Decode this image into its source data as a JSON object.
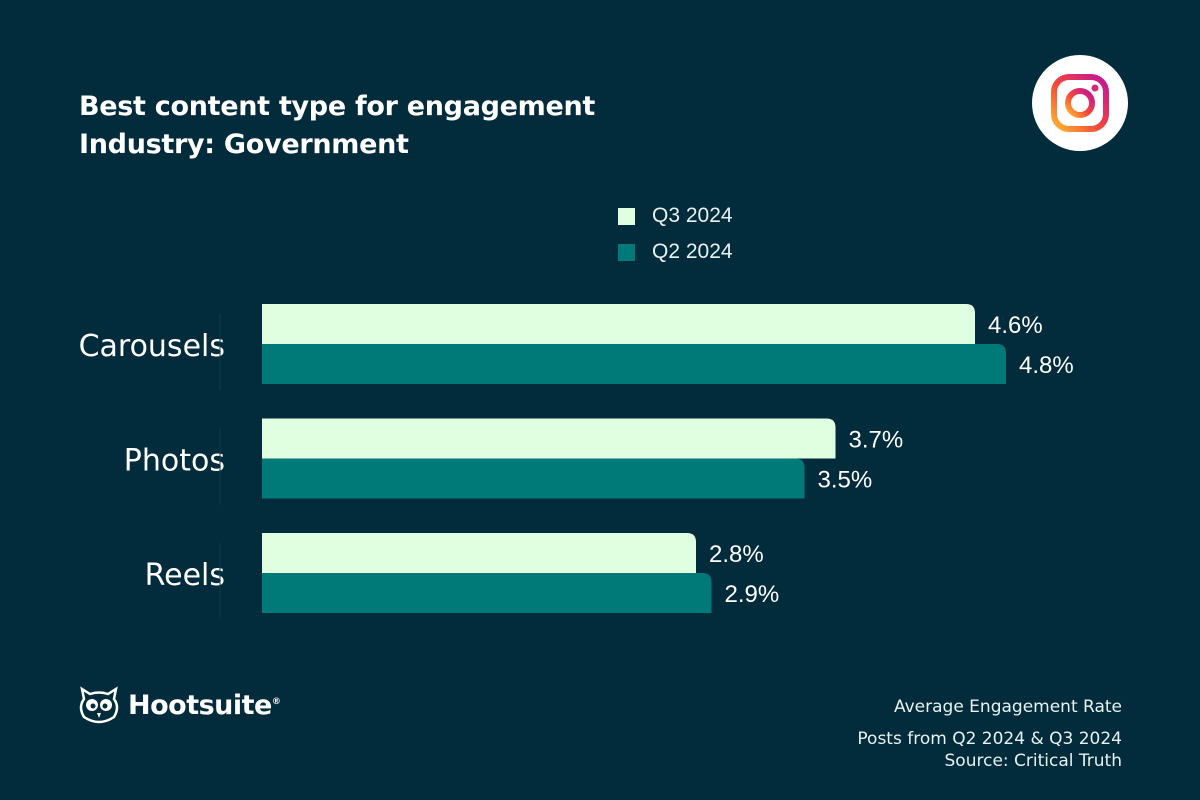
{
  "title_line1": "Best content type for engagement",
  "title_line2": "Industry: Government",
  "logo_icon": "instagram-icon",
  "brand": "Hootsuite",
  "brand_mark": "®",
  "footer": {
    "metric": "Average Engagement Rate",
    "posts": "Posts from Q2 2024 & Q3 2024",
    "source": "Source: Critical Truth"
  },
  "colors": {
    "background": "#022b3b",
    "q3": "#e0ffe0",
    "q2": "#007a78"
  },
  "chart_data": {
    "type": "bar",
    "orientation": "horizontal",
    "categories": [
      "Carousels",
      "Photos",
      "Reels"
    ],
    "series": [
      {
        "name": "Q3 2024",
        "values": [
          4.6,
          3.7,
          2.8
        ],
        "labels": [
          "4.6%",
          "3.7%",
          "2.8%"
        ],
        "color": "#e0ffe0"
      },
      {
        "name": "Q2 2024",
        "values": [
          4.8,
          3.5,
          2.9
        ],
        "labels": [
          "4.8%",
          "3.5%",
          "2.9%"
        ],
        "color": "#007a78"
      }
    ],
    "unit": "%",
    "legend": "top",
    "grid": false
  }
}
